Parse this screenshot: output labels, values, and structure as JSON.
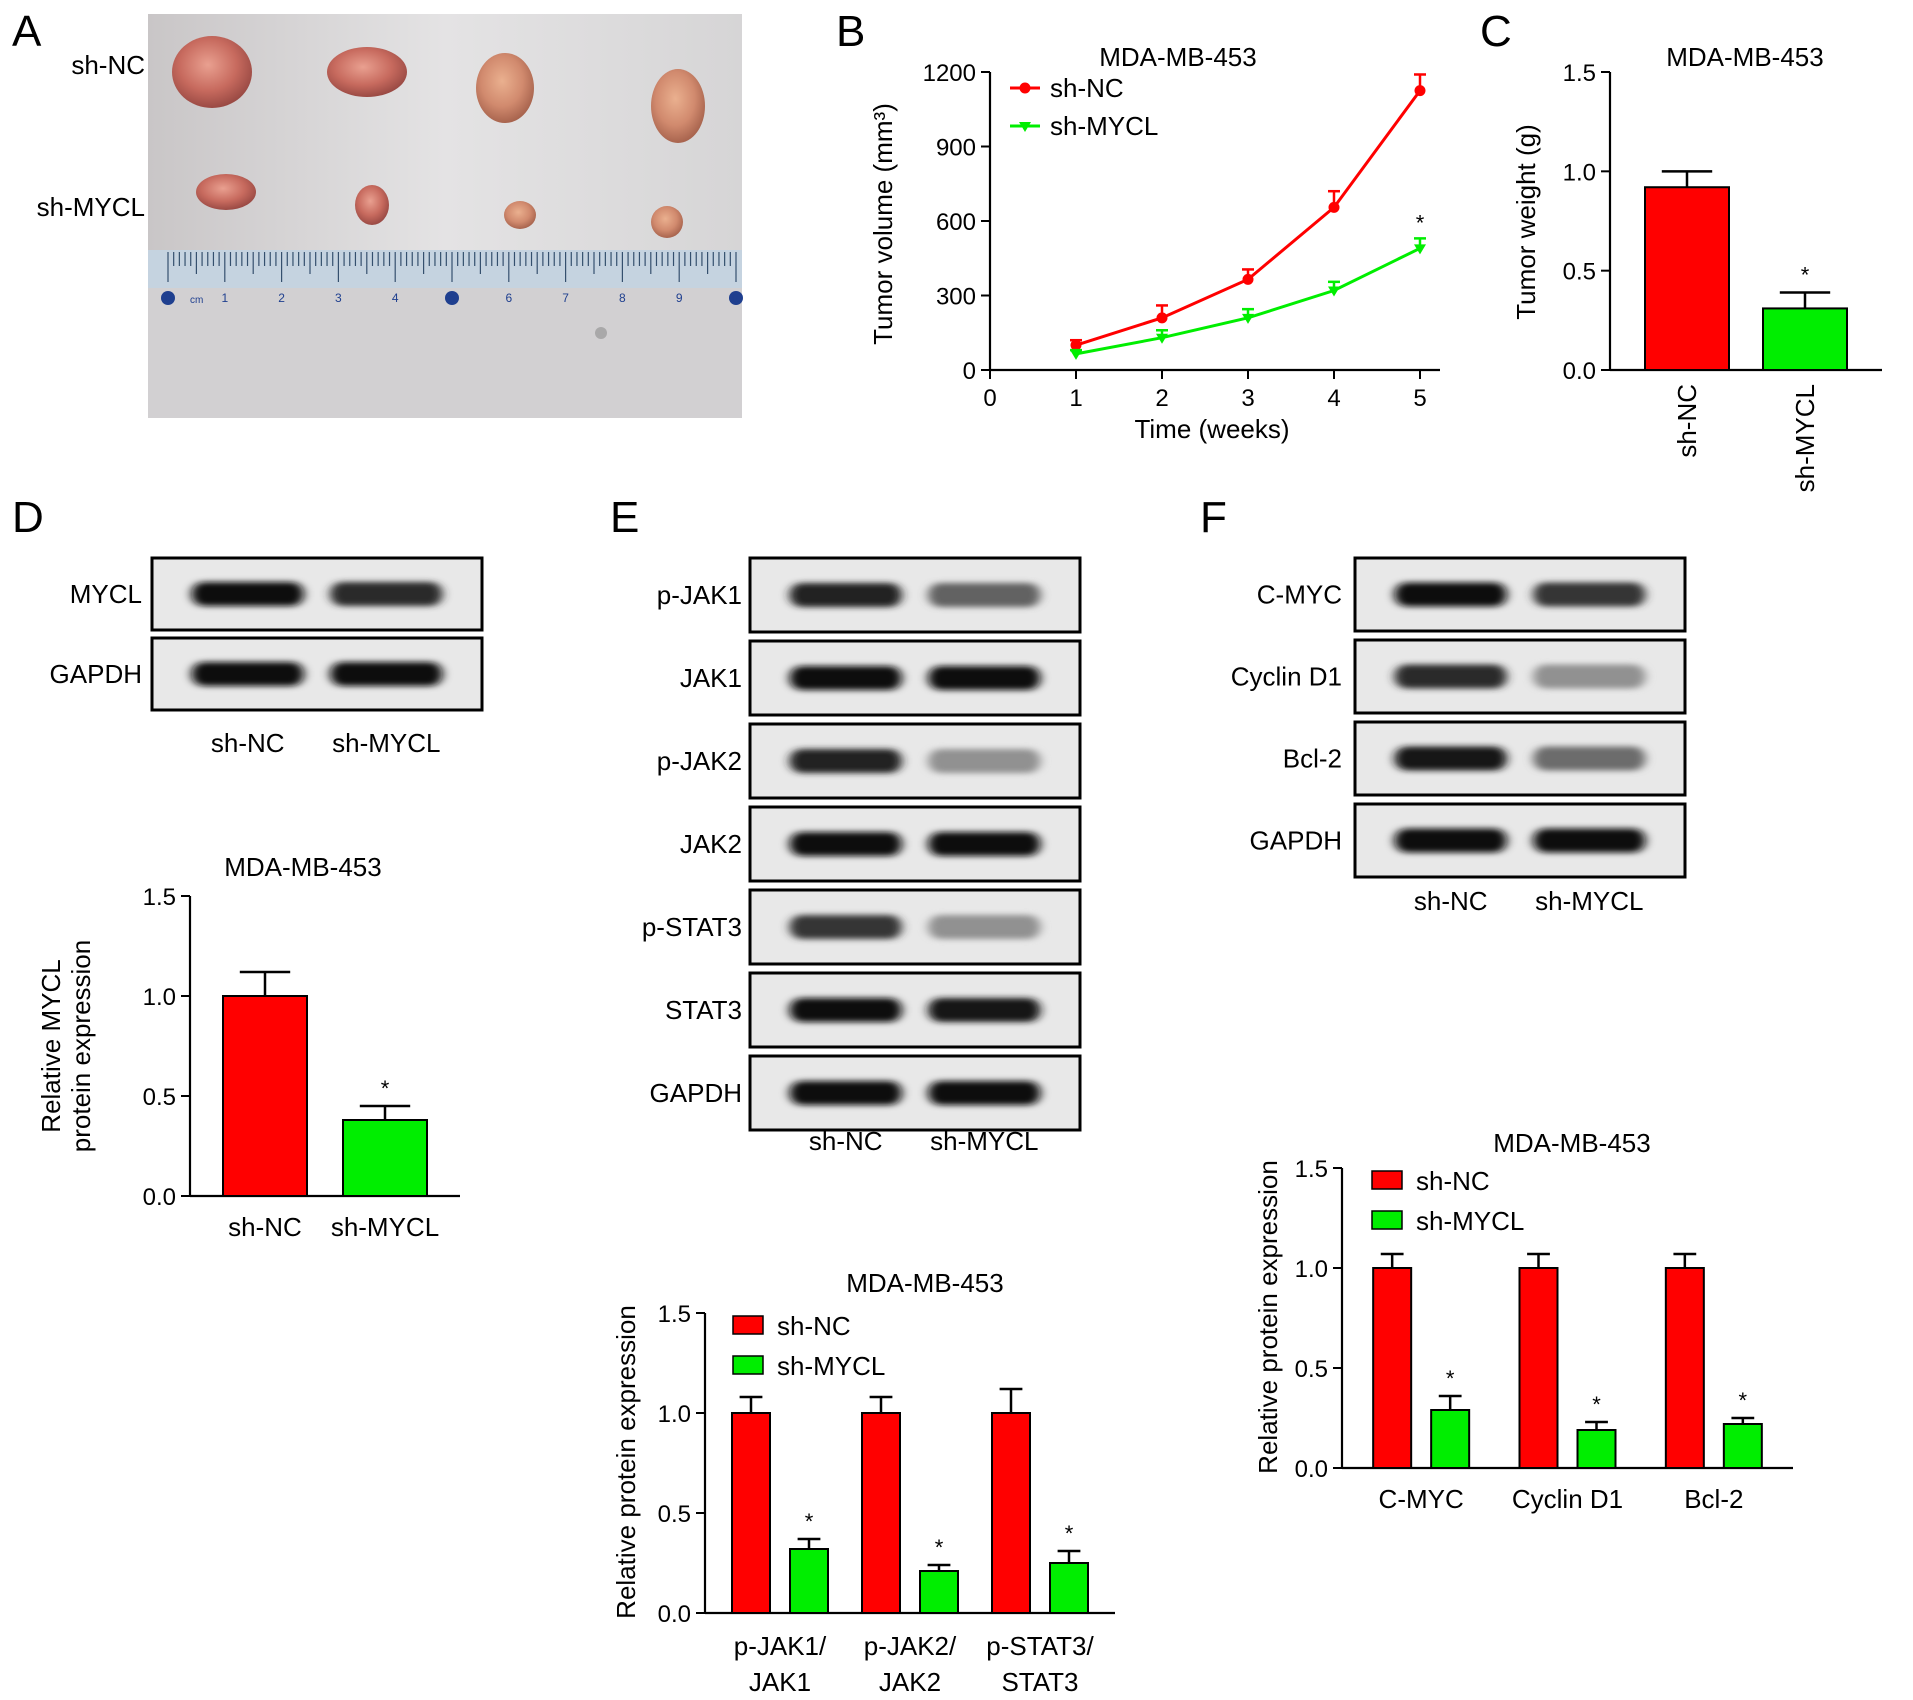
{
  "colors": {
    "sh_nc": "#ff0000",
    "sh_mycl": "#00ee00",
    "axis": "#000000"
  },
  "panels": {
    "A": {
      "letter": "A",
      "row_labels": [
        "sh-NC",
        "sh-MYCL"
      ],
      "ruler_unit": "cm"
    },
    "B": {
      "letter": "B"
    },
    "C": {
      "letter": "C"
    },
    "D": {
      "letter": "D",
      "blot": {
        "rows": [
          "MYCL",
          "GAPDH"
        ],
        "lanes": [
          "sh-NC",
          "sh-MYCL"
        ],
        "intensity": [
          [
            1.0,
            0.85
          ],
          [
            1.0,
            1.0
          ]
        ]
      }
    },
    "E": {
      "letter": "E",
      "blot": {
        "rows": [
          "p-JAK1",
          "JAK1",
          "p-JAK2",
          "JAK2",
          "p-STAT3",
          "STAT3",
          "GAPDH"
        ],
        "lanes": [
          "sh-NC",
          "sh-MYCL"
        ],
        "intensity": [
          [
            0.9,
            0.55
          ],
          [
            1.0,
            1.0
          ],
          [
            0.9,
            0.3
          ],
          [
            1.0,
            1.0
          ],
          [
            0.8,
            0.3
          ],
          [
            1.0,
            0.95
          ],
          [
            1.0,
            1.0
          ]
        ]
      }
    },
    "F": {
      "letter": "F",
      "blot": {
        "rows": [
          "C-MYC",
          "Cyclin D1",
          "Bcl-2",
          "GAPDH"
        ],
        "lanes": [
          "sh-NC",
          "sh-MYCL"
        ],
        "intensity": [
          [
            1.0,
            0.8
          ],
          [
            0.85,
            0.3
          ],
          [
            0.95,
            0.5
          ],
          [
            1.0,
            1.0
          ]
        ]
      }
    }
  },
  "chart_data": [
    {
      "id": "B",
      "type": "line",
      "title": "MDA-MB-453",
      "xlabel": "Time (weeks)",
      "ylabel": "Tumor volume (mm³)",
      "x": [
        1,
        2,
        3,
        4,
        5
      ],
      "xlim": [
        0,
        5
      ],
      "ylim": [
        0,
        1200
      ],
      "xticks": [
        0,
        1,
        2,
        3,
        4,
        5
      ],
      "yticks": [
        0,
        300,
        600,
        900,
        1200
      ],
      "legend": "top-left",
      "series": [
        {
          "name": "sh-NC",
          "values": [
            100,
            210,
            365,
            655,
            1125
          ],
          "errors": [
            20,
            50,
            40,
            65,
            65
          ]
        },
        {
          "name": "sh-MYCL",
          "values": [
            65,
            130,
            210,
            320,
            490
          ],
          "errors": [
            15,
            30,
            35,
            35,
            40
          ]
        }
      ],
      "annotations": [
        {
          "series": 1,
          "index": 4,
          "text": "*"
        }
      ]
    },
    {
      "id": "C",
      "type": "bar",
      "title": "MDA-MB-453",
      "ylabel": "Tumor weight (g)",
      "categories": [
        "sh-NC",
        "sh-MYCL"
      ],
      "values": [
        0.92,
        0.31
      ],
      "errors": [
        0.08,
        0.08
      ],
      "ylim": [
        0,
        1.5
      ],
      "yticks": [
        "0.0",
        "0.5",
        "1.0",
        "1.5"
      ],
      "annotations": [
        {
          "index": 1,
          "text": "*"
        }
      ]
    },
    {
      "id": "D",
      "type": "bar",
      "title": "MDA-MB-453",
      "ylabel": [
        "Relative MYCL",
        "protein expression"
      ],
      "categories": [
        "sh-NC",
        "sh-MYCL"
      ],
      "values": [
        1.0,
        0.38
      ],
      "errors": [
        0.12,
        0.07
      ],
      "ylim": [
        0,
        1.5
      ],
      "yticks": [
        "0.0",
        "0.5",
        "1.0",
        "1.5"
      ],
      "annotations": [
        {
          "index": 1,
          "text": "*"
        }
      ]
    },
    {
      "id": "E",
      "type": "bar",
      "title": "MDA-MB-453",
      "ylabel": "Relative protein expression",
      "categories": [
        [
          "p-JAK1/",
          "JAK1"
        ],
        [
          "p-JAK2/",
          "JAK2"
        ],
        [
          "p-STAT3/",
          "STAT3"
        ]
      ],
      "ylim": [
        0,
        1.5
      ],
      "yticks": [
        "0.0",
        "0.5",
        "1.0",
        "1.5"
      ],
      "legend": "top-left",
      "series": [
        {
          "name": "sh-NC",
          "values": [
            1.0,
            1.0,
            1.0
          ],
          "errors": [
            0.08,
            0.08,
            0.12
          ]
        },
        {
          "name": "sh-MYCL",
          "values": [
            0.32,
            0.21,
            0.25
          ],
          "errors": [
            0.05,
            0.03,
            0.06
          ]
        }
      ],
      "annotations": [
        {
          "series": 1,
          "index": 0,
          "text": "*"
        },
        {
          "series": 1,
          "index": 1,
          "text": "*"
        },
        {
          "series": 1,
          "index": 2,
          "text": "*"
        }
      ]
    },
    {
      "id": "F",
      "type": "bar",
      "title": "MDA-MB-453",
      "ylabel": "Relative protein expression",
      "categories": [
        "C-MYC",
        "Cyclin D1",
        "Bcl-2"
      ],
      "ylim": [
        0,
        1.5
      ],
      "yticks": [
        "0.0",
        "0.5",
        "1.0",
        "1.5"
      ],
      "legend": "top-left",
      "series": [
        {
          "name": "sh-NC",
          "values": [
            1.0,
            1.0,
            1.0
          ],
          "errors": [
            0.07,
            0.07,
            0.07
          ]
        },
        {
          "name": "sh-MYCL",
          "values": [
            0.29,
            0.19,
            0.22
          ],
          "errors": [
            0.07,
            0.04,
            0.03
          ]
        }
      ],
      "annotations": [
        {
          "series": 1,
          "index": 0,
          "text": "*"
        },
        {
          "series": 1,
          "index": 1,
          "text": "*"
        },
        {
          "series": 1,
          "index": 2,
          "text": "*"
        }
      ]
    }
  ]
}
